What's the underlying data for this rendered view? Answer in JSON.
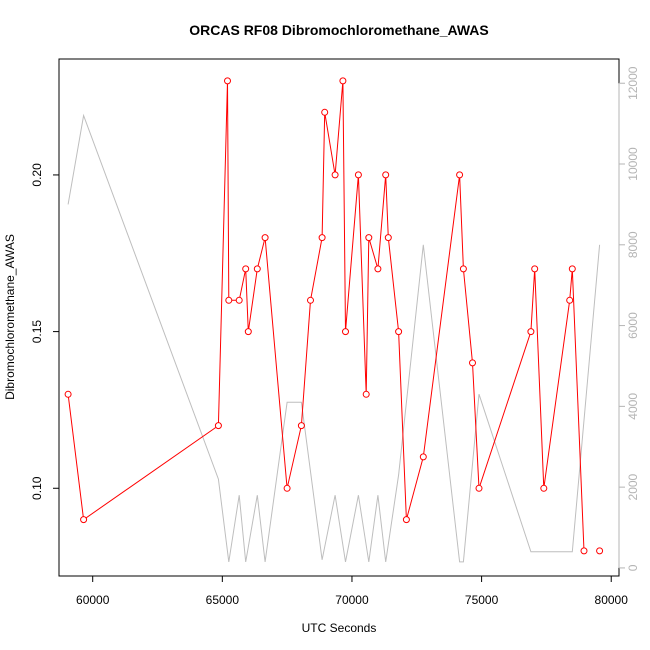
{
  "chart_data": {
    "type": "line",
    "title": "ORCAS RF08 Dibromochloromethane_AWAS",
    "xlabel": "UTC Seconds",
    "ylabel": "Dibromochloromethane_AWAS",
    "xlim": [
      58700,
      80300
    ],
    "ylim": [
      0.072,
      0.237
    ],
    "y2lim": [
      -200,
      12600
    ],
    "x_ticks": [
      60000,
      65000,
      70000,
      75000,
      80000
    ],
    "y_ticks": [
      0.1,
      0.15,
      0.2
    ],
    "y_tick_labels": [
      "0.10",
      "0.15",
      "0.20"
    ],
    "y2_ticks": [
      0,
      2000,
      4000,
      6000,
      8000,
      10000,
      12000
    ],
    "grid": false,
    "series": [
      {
        "axis": "left",
        "color": "#ff0000",
        "markers": "open-circle",
        "x": [
          59050,
          59650,
          64850,
          65200,
          65250,
          65650,
          65900,
          66000,
          66350,
          66650,
          67500,
          68050,
          68400,
          68850,
          68950,
          69350,
          69650,
          69750,
          70250,
          70550,
          70650,
          71000,
          71300,
          71400,
          71800,
          72100,
          72750,
          74150,
          74300,
          74650,
          74900,
          76900,
          77050,
          77400,
          78400,
          78500,
          78950,
          79550
        ],
        "y": [
          0.13,
          0.09,
          0.12,
          0.23,
          0.16,
          0.16,
          0.17,
          0.15,
          0.17,
          0.18,
          0.1,
          0.12,
          0.16,
          0.18,
          0.22,
          0.2,
          0.23,
          0.15,
          0.2,
          0.13,
          0.18,
          0.17,
          0.2,
          0.18,
          0.15,
          0.09,
          0.11,
          0.2,
          0.17,
          0.14,
          0.1,
          0.15,
          0.17,
          0.1,
          0.16,
          0.17,
          0.08,
          0.08
        ],
        "line_x": [
          59050,
          59650,
          64850,
          65200,
          65250,
          65650,
          65900,
          66000,
          66350,
          66650,
          67500,
          68050,
          68400,
          68850,
          68950,
          69350,
          69650,
          69750,
          70250,
          70550,
          70650,
          71000,
          71300,
          71400,
          71800,
          72100,
          72750,
          74150,
          74300,
          74650,
          74900,
          76900,
          77050,
          77400,
          78400,
          78500,
          78950
        ],
        "line_y": [
          0.13,
          0.09,
          0.12,
          0.23,
          0.16,
          0.16,
          0.17,
          0.15,
          0.17,
          0.18,
          0.1,
          0.12,
          0.16,
          0.18,
          0.22,
          0.2,
          0.23,
          0.15,
          0.2,
          0.13,
          0.18,
          0.17,
          0.2,
          0.18,
          0.15,
          0.09,
          0.11,
          0.2,
          0.17,
          0.14,
          0.1,
          0.15,
          0.17,
          0.1,
          0.16,
          0.17,
          0.08
        ]
      },
      {
        "axis": "right",
        "color": "#bebebe",
        "x": [
          59050,
          59650,
          64850,
          65250,
          65650,
          65900,
          66350,
          66650,
          67500,
          68050,
          68850,
          69350,
          69750,
          70250,
          70650,
          71000,
          71300,
          71800,
          72750,
          74150,
          74300,
          74900,
          76900,
          77050,
          78400,
          78500,
          79550
        ],
        "y": [
          9000,
          11200,
          2200,
          150,
          1800,
          150,
          1800,
          150,
          4100,
          4100,
          200,
          1800,
          150,
          1800,
          150,
          1800,
          150,
          2300,
          8000,
          150,
          150,
          4300,
          400,
          400,
          400,
          400,
          8000
        ]
      }
    ]
  }
}
